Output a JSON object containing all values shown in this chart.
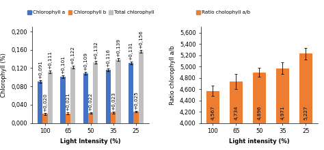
{
  "categories": [
    "100",
    "65",
    "50",
    "35",
    "25"
  ],
  "chl_a": [
    0.091,
    0.101,
    0.109,
    0.116,
    0.131
  ],
  "chl_b": [
    0.02,
    0.021,
    0.022,
    0.023,
    0.025
  ],
  "chl_total": [
    0.111,
    0.122,
    0.132,
    0.139,
    0.156
  ],
  "chl_a_errors": [
    0.003,
    0.003,
    0.003,
    0.003,
    0.003
  ],
  "chl_b_errors": [
    0.002,
    0.002,
    0.002,
    0.002,
    0.002
  ],
  "chl_total_errors": [
    0.003,
    0.003,
    0.003,
    0.003,
    0.003
  ],
  "ratio_values": [
    4.567,
    4.734,
    4.896,
    4.971,
    5.227
  ],
  "ratio_errors": [
    0.09,
    0.13,
    0.08,
    0.1,
    0.1
  ],
  "color_a": "#4472C4",
  "color_b": "#ED7D31",
  "color_total": "#BFBFBF",
  "color_ratio": "#ED7D31",
  "ylabel_left": "Chlorophyll (%)",
  "ylabel_right": "Ratio chlorophyll a/b",
  "xlabel_left": "Light Intensity (%)",
  "xlabel_right": "Light intensity (%)",
  "legend_a": "Chlorophyll a",
  "legend_b": "Chlorophyll b",
  "legend_total": "Total chlorophyll",
  "legend_ratio": "Ratio cholophyll a/b",
  "ylim_left": [
    0.0,
    0.21
  ],
  "yticks_left": [
    0.0,
    0.04,
    0.08,
    0.12,
    0.16,
    0.2
  ],
  "ylim_right": [
    4.0,
    5.7
  ],
  "yticks_right": [
    4.0,
    4.2,
    4.4,
    4.6,
    4.8,
    5.0,
    5.2,
    5.4,
    5.6
  ],
  "bar_width": 0.22,
  "fontsize": 6.0,
  "label_fontsize": 5.2
}
